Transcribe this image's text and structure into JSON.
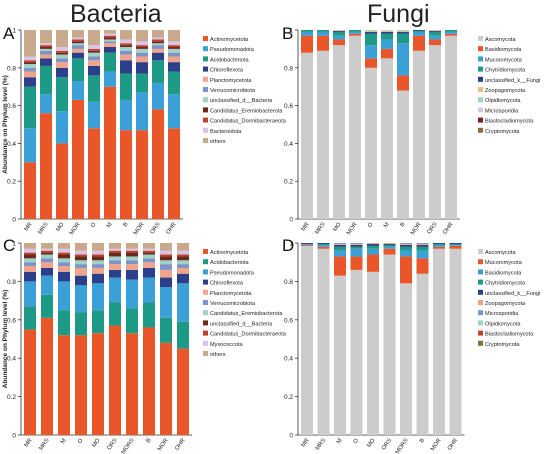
{
  "headers": {
    "left": "Bacteria",
    "right": "Fungi"
  },
  "chart_data": [
    {
      "panel": "A",
      "type": "bar",
      "stacked": true,
      "ylabel": "Abundance on Phylum level (%)",
      "ylim": [
        0,
        1
      ],
      "yticks": [
        "0",
        "0.2",
        "0.4",
        "0.6",
        "0.8",
        "1"
      ],
      "categories": [
        "MR",
        "MRS",
        "MO",
        "MOR",
        "O",
        "M",
        "B",
        "MOR",
        "ORS",
        "OHR"
      ],
      "legend_position": "right",
      "series": [
        {
          "name": "Actinomycetota",
          "color": "#e8562a",
          "values": [
            0.3,
            0.56,
            0.4,
            0.63,
            0.48,
            0.7,
            0.47,
            0.47,
            0.58,
            0.48
          ]
        },
        {
          "name": "Pseudomonadota",
          "color": "#3ba0d8",
          "values": [
            0.18,
            0.1,
            0.17,
            0.1,
            0.14,
            0.08,
            0.16,
            0.2,
            0.14,
            0.18
          ]
        },
        {
          "name": "Acidobacteriota",
          "color": "#1d9a86",
          "values": [
            0.22,
            0.15,
            0.18,
            0.12,
            0.14,
            0.1,
            0.14,
            0.1,
            0.12,
            0.12
          ]
        },
        {
          "name": "Chloroflexota",
          "color": "#2b3f8a",
          "values": [
            0.05,
            0.04,
            0.05,
            0.03,
            0.05,
            0.03,
            0.07,
            0.06,
            0.04,
            0.05
          ]
        },
        {
          "name": "Planctomycetota",
          "color": "#f2a38c",
          "values": [
            0.03,
            0.02,
            0.03,
            0.02,
            0.03,
            0.02,
            0.03,
            0.03,
            0.02,
            0.03
          ]
        },
        {
          "name": "Verrucomicrobiota",
          "color": "#7e93c8",
          "values": [
            0.02,
            0.02,
            0.02,
            0.02,
            0.02,
            0.01,
            0.02,
            0.02,
            0.02,
            0.02
          ]
        },
        {
          "name": "unclassified_d__Bacteria",
          "color": "#9ed3c8",
          "values": [
            0.02,
            0.01,
            0.02,
            0.01,
            0.02,
            0.01,
            0.02,
            0.02,
            0.01,
            0.02
          ]
        },
        {
          "name": "Candidatus_Eremiobacterota",
          "color": "#6b2a1c",
          "values": [
            0.01,
            0.01,
            0.01,
            0.01,
            0.01,
            0.01,
            0.01,
            0.01,
            0.01,
            0.01
          ]
        },
        {
          "name": "Candidatus_Dormibacteraeota",
          "color": "#c2412c",
          "values": [
            0.01,
            0.01,
            0.01,
            0.01,
            0.01,
            0.01,
            0.01,
            0.01,
            0.01,
            0.01
          ]
        },
        {
          "name": "Bacteroidota",
          "color": "#d9c3e6",
          "values": [
            0.02,
            0.01,
            0.02,
            0.01,
            0.02,
            0.01,
            0.02,
            0.02,
            0.01,
            0.02
          ]
        },
        {
          "name": "others",
          "color": "#c8a98c",
          "values": [
            0.14,
            0.07,
            0.09,
            0.04,
            0.08,
            0.02,
            0.05,
            0.06,
            0.04,
            0.06
          ]
        }
      ]
    },
    {
      "panel": "B",
      "type": "bar",
      "stacked": true,
      "ylabel": "",
      "ylim": [
        0,
        1
      ],
      "yticks": [
        "0",
        "0.2",
        "0.4",
        "0.6",
        "0.8",
        "1"
      ],
      "categories": [
        "MR",
        "MRS",
        "MO",
        "MOR",
        "O",
        "M",
        "B",
        "MOR",
        "ORS",
        "OHR"
      ],
      "legend_position": "right",
      "series": [
        {
          "name": "Ascomycota",
          "color": "#cccccc",
          "values": [
            0.88,
            0.89,
            0.92,
            0.97,
            0.8,
            0.85,
            0.68,
            0.89,
            0.92,
            0.97
          ]
        },
        {
          "name": "Basidiomycota",
          "color": "#e8562a",
          "values": [
            0.09,
            0.08,
            0.03,
            0.01,
            0.05,
            0.05,
            0.08,
            0.08,
            0.03,
            0.01
          ]
        },
        {
          "name": "Mucoromycota",
          "color": "#3ba0d8",
          "values": [
            0.02,
            0.02,
            0.02,
            0.01,
            0.07,
            0.05,
            0.17,
            0.02,
            0.02,
            0.01
          ]
        },
        {
          "name": "Chytridiomycota",
          "color": "#1d9a86",
          "values": [
            0.01,
            0.01,
            0.02,
            0.01,
            0.06,
            0.03,
            0.05,
            0.005,
            0.02,
            0.01
          ]
        },
        {
          "name": "unclassified_k__Fungi",
          "color": "#2b3f8a",
          "values": [
            0.0,
            0.0,
            0.005,
            0.0,
            0.01,
            0.01,
            0.01,
            0.005,
            0.005,
            0.0
          ]
        },
        {
          "name": "Zoopagomycota",
          "color": "#e0c28a",
          "values": [
            0.0,
            0.0,
            0.005,
            0.0,
            0.005,
            0.005,
            0.005,
            0.0,
            0.005,
            0.0
          ]
        },
        {
          "name": "Olpidiomycota",
          "color": "#9ed3c8",
          "values": [
            0.0,
            0.0,
            0.0,
            0.0,
            0.005,
            0.0,
            0.005,
            0.0,
            0.0,
            0.0
          ]
        },
        {
          "name": "Microsporidia",
          "color": "#d9c3e6",
          "values": [
            0.0,
            0.0,
            0.0,
            0.0,
            0.0,
            0.005,
            0.0,
            0.0,
            0.0,
            0.0
          ]
        },
        {
          "name": "Blastocladiomycota",
          "color": "#6b2a1c",
          "values": [
            0.0,
            0.0,
            0.0,
            0.0,
            0.0,
            0.0,
            0.0,
            0.0,
            0.0,
            0.0
          ]
        },
        {
          "name": "Cryptomycota",
          "color": "#8a6d3b",
          "values": [
            0.0,
            0.0,
            0.0,
            0.0,
            0.0,
            0.0,
            0.0,
            0.0,
            0.0,
            0.0
          ]
        }
      ]
    },
    {
      "panel": "C",
      "type": "bar",
      "stacked": true,
      "ylabel": "Abundance on Phylum level (%)",
      "ylim": [
        0,
        1
      ],
      "yticks": [
        "0",
        "0.2",
        "0.4",
        "0.6",
        "0.8",
        "1"
      ],
      "categories": [
        "MR",
        "MRS",
        "M",
        "O",
        "MO",
        "ORS",
        "MORS",
        "B",
        "MOR",
        "OHR"
      ],
      "legend_position": "right",
      "series": [
        {
          "name": "Actinomycetota",
          "color": "#e8562a",
          "values": [
            0.55,
            0.61,
            0.52,
            0.52,
            0.53,
            0.57,
            0.53,
            0.56,
            0.48,
            0.45
          ]
        },
        {
          "name": "Acidobacteriota",
          "color": "#1d9a86",
          "values": [
            0.12,
            0.12,
            0.13,
            0.12,
            0.12,
            0.12,
            0.13,
            0.13,
            0.13,
            0.14
          ]
        },
        {
          "name": "Pseudomonadota",
          "color": "#3ba0d8",
          "values": [
            0.13,
            0.1,
            0.15,
            0.14,
            0.14,
            0.13,
            0.15,
            0.13,
            0.16,
            0.2
          ]
        },
        {
          "name": "Chloroflexota",
          "color": "#2b3f8a",
          "values": [
            0.05,
            0.04,
            0.05,
            0.05,
            0.05,
            0.04,
            0.05,
            0.05,
            0.05,
            0.05
          ]
        },
        {
          "name": "Planctomycetota",
          "color": "#f2a38c",
          "values": [
            0.03,
            0.03,
            0.03,
            0.04,
            0.03,
            0.03,
            0.03,
            0.03,
            0.04,
            0.03
          ]
        },
        {
          "name": "Verrucomicrobiota",
          "color": "#7e93c8",
          "values": [
            0.02,
            0.02,
            0.02,
            0.02,
            0.02,
            0.02,
            0.02,
            0.02,
            0.03,
            0.02
          ]
        },
        {
          "name": "Candidatus_Eremiobacterota",
          "color": "#9ed3c8",
          "values": [
            0.02,
            0.02,
            0.02,
            0.02,
            0.02,
            0.02,
            0.02,
            0.02,
            0.02,
            0.02
          ]
        },
        {
          "name": "unclassified_d__Bacteria",
          "color": "#6b2a1c",
          "values": [
            0.02,
            0.01,
            0.02,
            0.02,
            0.02,
            0.02,
            0.02,
            0.01,
            0.02,
            0.02
          ]
        },
        {
          "name": "Candidatus_Dormibacteraeota",
          "color": "#c2412c",
          "values": [
            0.01,
            0.01,
            0.01,
            0.01,
            0.01,
            0.01,
            0.01,
            0.01,
            0.01,
            0.01
          ]
        },
        {
          "name": "Myxococcota",
          "color": "#d9c3e6",
          "values": [
            0.02,
            0.01,
            0.02,
            0.02,
            0.02,
            0.01,
            0.01,
            0.01,
            0.02,
            0.02
          ]
        },
        {
          "name": "others",
          "color": "#c8a98c",
          "values": [
            0.03,
            0.03,
            0.03,
            0.04,
            0.04,
            0.03,
            0.03,
            0.03,
            0.04,
            0.04
          ]
        }
      ]
    },
    {
      "panel": "D",
      "type": "bar",
      "stacked": true,
      "ylabel": "",
      "ylim": [
        0,
        1
      ],
      "yticks": [
        "0",
        "0.2",
        "0.4",
        "0.6",
        "0.8",
        "1"
      ],
      "categories": [
        "MR",
        "MRS",
        "M",
        "O",
        "MO",
        "ORS",
        "MORS",
        "B",
        "MOR",
        "OHR"
      ],
      "legend_position": "right",
      "series": [
        {
          "name": "Ascomycota",
          "color": "#cccccc",
          "values": [
            0.985,
            0.97,
            0.83,
            0.86,
            0.85,
            0.94,
            0.79,
            0.84,
            0.97,
            0.97
          ]
        },
        {
          "name": "Mucoromycota",
          "color": "#e8562a",
          "values": [
            0.005,
            0.01,
            0.1,
            0.07,
            0.09,
            0.03,
            0.14,
            0.08,
            0.01,
            0.015
          ]
        },
        {
          "name": "Basidiomycota",
          "color": "#3ba0d8",
          "values": [
            0.005,
            0.01,
            0.03,
            0.04,
            0.03,
            0.01,
            0.03,
            0.04,
            0.01,
            0.005
          ]
        },
        {
          "name": "Chytridiomycota",
          "color": "#1d9a86",
          "values": [
            0.0,
            0.005,
            0.02,
            0.01,
            0.015,
            0.01,
            0.02,
            0.02,
            0.005,
            0.005
          ]
        },
        {
          "name": "unclassified_k__Fungi",
          "color": "#2b3f8a",
          "values": [
            0.005,
            0.005,
            0.01,
            0.01,
            0.01,
            0.005,
            0.01,
            0.01,
            0.005,
            0.005
          ]
        },
        {
          "name": "Zoopagomycota",
          "color": "#f2a38c",
          "values": [
            0.0,
            0.0,
            0.005,
            0.005,
            0.005,
            0.005,
            0.005,
            0.005,
            0.0,
            0.0
          ]
        },
        {
          "name": "Microsporidia",
          "color": "#7e93c8",
          "values": [
            0.0,
            0.0,
            0.005,
            0.005,
            0.0,
            0.0,
            0.005,
            0.005,
            0.0,
            0.0
          ]
        },
        {
          "name": "Olpidiomycota",
          "color": "#9ed3c8",
          "values": [
            0.0,
            0.0,
            0.0,
            0.0,
            0.0,
            0.0,
            0.0,
            0.0,
            0.0,
            0.0
          ]
        },
        {
          "name": "Blastocladiomycota",
          "color": "#c2412c",
          "values": [
            0.0,
            0.0,
            0.0,
            0.0,
            0.0,
            0.0,
            0.0,
            0.0,
            0.0,
            0.0
          ]
        },
        {
          "name": "Cryptomycota",
          "color": "#8a6d3b",
          "values": [
            0.0,
            0.0,
            0.0,
            0.0,
            0.0,
            0.0,
            0.0,
            0.0,
            0.0,
            0.0
          ]
        }
      ]
    }
  ]
}
